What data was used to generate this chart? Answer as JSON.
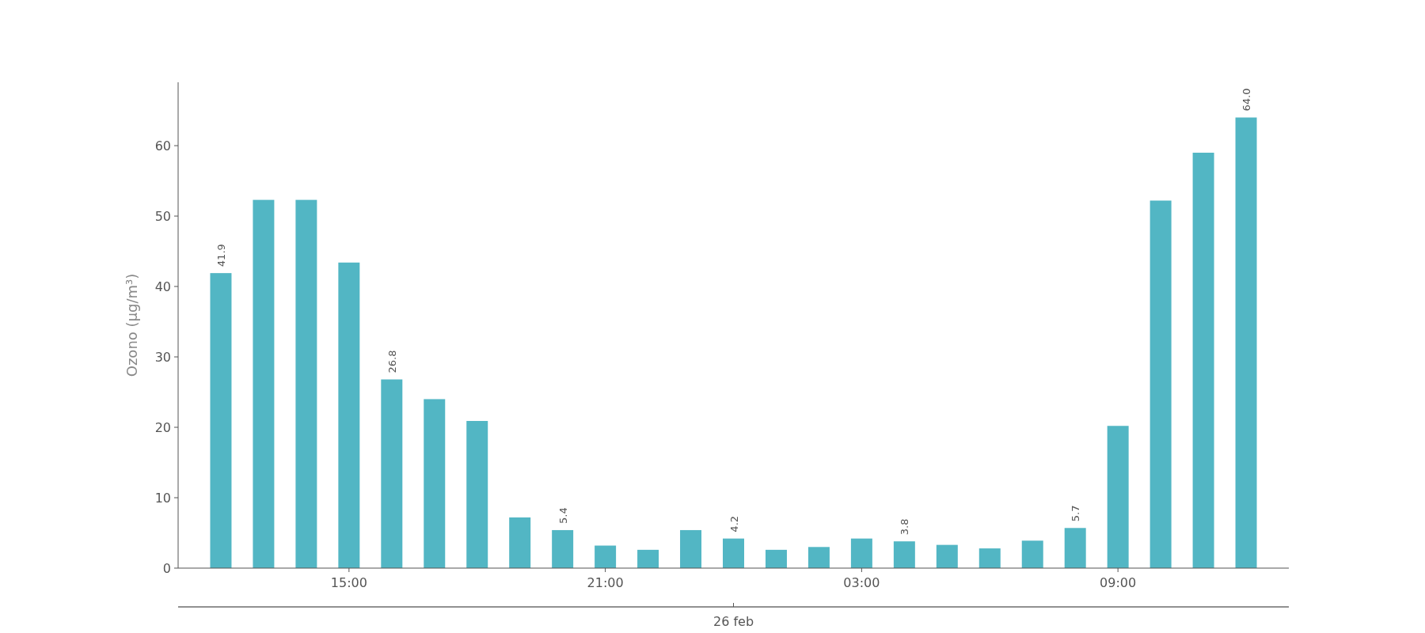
{
  "chart_data": {
    "type": "bar",
    "ylabel": "Ozono (μg/m³)",
    "xlabel": "26 feb",
    "categories": [
      null,
      null,
      null,
      "15:00",
      null,
      null,
      null,
      null,
      null,
      "21:00",
      null,
      null,
      null,
      null,
      null,
      "03:00",
      null,
      null,
      null,
      null,
      null,
      "09:00",
      null,
      null,
      null
    ],
    "values": [
      41.9,
      52.3,
      52.3,
      43.4,
      26.8,
      24.0,
      20.9,
      7.2,
      5.4,
      3.2,
      2.6,
      5.4,
      4.2,
      2.6,
      3.0,
      4.2,
      3.8,
      3.3,
      2.8,
      3.9,
      5.7,
      20.2,
      52.2,
      59.0,
      64.0
    ],
    "value_labels": [
      "41.9",
      null,
      null,
      null,
      "26.8",
      null,
      null,
      null,
      "5.4",
      null,
      null,
      null,
      "4.2",
      null,
      null,
      null,
      "3.8",
      null,
      null,
      null,
      "5.7",
      null,
      null,
      null,
      "64.0"
    ],
    "color": "#52b6c4",
    "ylim": [
      0,
      69
    ],
    "yticks": [
      0,
      10,
      20,
      30,
      40,
      50,
      60
    ],
    "grid": false
  }
}
